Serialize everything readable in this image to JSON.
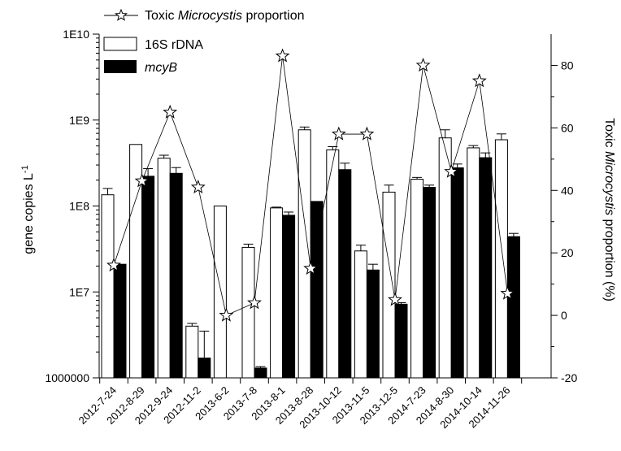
{
  "chart_data": {
    "type": "bar",
    "categories": [
      "2012-7-24",
      "2012-8-29",
      "2012-9-24",
      "2012-11-2",
      "2013-6-2",
      "2013-7-8",
      "2013-8-1",
      "2013-8-28",
      "2013-10-12",
      "2013-11-5",
      "2013-12-5",
      "2014-7-23",
      "2014-8-30",
      "2014-10-14",
      "2014-11-26"
    ],
    "series": [
      {
        "name": "16S rDNA",
        "axis": "left",
        "style": "open-bar",
        "values": [
          135000000,
          520000000,
          360000000,
          4000000,
          100000000,
          33000000,
          95000000,
          770000000,
          450000000,
          30000000,
          145000000,
          205000000,
          620000000,
          475000000,
          590000000
        ],
        "errors": [
          25000000,
          0,
          30000000,
          300000,
          0,
          3000000,
          2000000,
          60000000,
          40000000,
          5000000,
          30000000,
          10000000,
          150000000,
          30000000,
          100000000
        ]
      },
      {
        "name": "mcyB",
        "axis": "left",
        "style": "filled-bar",
        "values": [
          21000000,
          222000000,
          240000000,
          1700000,
          null,
          1300000,
          78000000,
          113000000,
          265000000,
          18000000,
          7200000,
          165000000,
          278000000,
          365000000,
          44000000
        ],
        "errors": [
          0,
          50000000,
          40000000,
          1800000,
          0,
          50000,
          7000000,
          0,
          50000000,
          3000000,
          300000,
          10000000,
          30000000,
          50000000,
          4000000
        ]
      },
      {
        "name": "Toxic Microcystis proportion",
        "axis": "right",
        "style": "line-star",
        "values": [
          16,
          43,
          65,
          41,
          0,
          4,
          83,
          15,
          58,
          58,
          5,
          80,
          46,
          75,
          7
        ]
      }
    ],
    "left_axis": {
      "scale": "log",
      "ylim": [
        1000000,
        10000000000
      ],
      "ticks": [
        1000000,
        10000000,
        100000000,
        1000000000,
        10000000000
      ],
      "tick_labels": [
        "1000000",
        "1E7",
        "1E8",
        "1E9",
        "1E10"
      ],
      "label": "gene copies L",
      "label_sup": "-1"
    },
    "right_axis": {
      "scale": "linear",
      "ylim": [
        -20,
        90
      ],
      "ticks": [
        -20,
        0,
        20,
        40,
        60,
        80
      ],
      "tick_labels": [
        "-20",
        "0",
        "20",
        "40",
        "60",
        "80"
      ],
      "label_pre": "Toxic ",
      "label_italic": "Microcystis",
      "label_post": " proportion (%)"
    },
    "legend": {
      "line_pre": "Toxic ",
      "line_italic": "Microcystis",
      "line_post": " proportion",
      "bar1": "16S rDNA",
      "bar2": "mcyB"
    },
    "grid": false,
    "legend_placement": "top-left"
  }
}
